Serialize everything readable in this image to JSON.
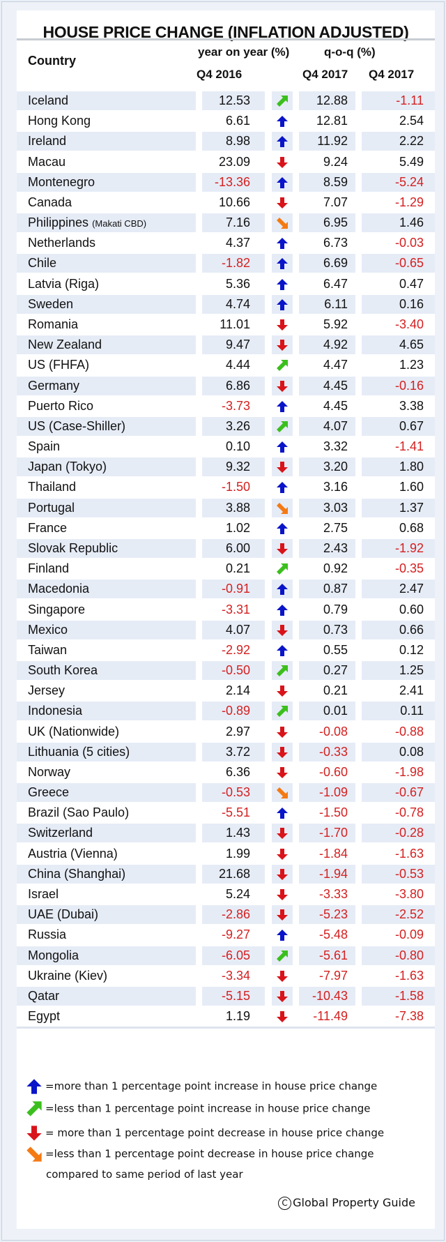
{
  "title": "HOUSE PRICE CHANGE (INFLATION ADJUSTED)",
  "header": {
    "country": "Country",
    "yoy": "year on year (%)",
    "qoq": "q-o-q (%)",
    "col1": "Q4 2016",
    "col2": "Q4 2017",
    "col3": "Q4 2017"
  },
  "colors": {
    "blue": "#0a14c8",
    "green": "#3cbf1e",
    "red": "#d8141a",
    "orange": "#f47a14",
    "negative_text": "#d42020"
  },
  "rows": [
    {
      "country": "Iceland",
      "q4_2016": "12.53",
      "arrow": "green",
      "q4_2017": "12.88",
      "qoq": "-1.11"
    },
    {
      "country": "Hong Kong",
      "q4_2016": "6.61",
      "arrow": "blue",
      "q4_2017": "12.81",
      "qoq": "2.54"
    },
    {
      "country": "Ireland",
      "q4_2016": "8.98",
      "arrow": "blue",
      "q4_2017": "11.92",
      "qoq": "2.22"
    },
    {
      "country": "Macau",
      "q4_2016": "23.09",
      "arrow": "red",
      "q4_2017": "9.24",
      "qoq": "5.49"
    },
    {
      "country": "Montenegro",
      "q4_2016": "-13.36",
      "arrow": "blue",
      "q4_2017": "8.59",
      "qoq": "-5.24"
    },
    {
      "country": "Canada",
      "q4_2016": "10.66",
      "arrow": "red",
      "q4_2017": "7.07",
      "qoq": "-1.29"
    },
    {
      "country": "Philippines",
      "country_note": "(Makati CBD)",
      "q4_2016": "7.16",
      "arrow": "orange",
      "q4_2017": "6.95",
      "qoq": "1.46"
    },
    {
      "country": "Netherlands",
      "q4_2016": "4.37",
      "arrow": "blue",
      "q4_2017": "6.73",
      "qoq": "-0.03"
    },
    {
      "country": "Chile",
      "q4_2016": "-1.82",
      "arrow": "blue",
      "q4_2017": "6.69",
      "qoq": "-0.65"
    },
    {
      "country": "Latvia (Riga)",
      "q4_2016": "5.36",
      "arrow": "blue",
      "q4_2017": "6.47",
      "qoq": "0.47"
    },
    {
      "country": "Sweden",
      "q4_2016": "4.74",
      "arrow": "blue",
      "q4_2017": "6.11",
      "qoq": "0.16"
    },
    {
      "country": "Romania",
      "q4_2016": "11.01",
      "arrow": "red",
      "q4_2017": "5.92",
      "qoq": "-3.40"
    },
    {
      "country": "New Zealand",
      "q4_2016": "9.47",
      "arrow": "red",
      "q4_2017": "4.92",
      "qoq": "4.65"
    },
    {
      "country": "US (FHFA)",
      "q4_2016": "4.44",
      "arrow": "green",
      "q4_2017": "4.47",
      "qoq": "1.23"
    },
    {
      "country": "Germany",
      "q4_2016": "6.86",
      "arrow": "red",
      "q4_2017": "4.45",
      "qoq": "-0.16"
    },
    {
      "country": "Puerto Rico",
      "q4_2016": "-3.73",
      "arrow": "blue",
      "q4_2017": "4.45",
      "qoq": "3.38"
    },
    {
      "country": "US (Case-Shiller)",
      "q4_2016": "3.26",
      "arrow": "green",
      "q4_2017": "4.07",
      "qoq": "0.67"
    },
    {
      "country": "Spain",
      "q4_2016": "0.10",
      "arrow": "blue",
      "q4_2017": "3.32",
      "qoq": "-1.41"
    },
    {
      "country": "Japan (Tokyo)",
      "q4_2016": "9.32",
      "arrow": "red",
      "q4_2017": "3.20",
      "qoq": "1.80"
    },
    {
      "country": "Thailand",
      "q4_2016": "-1.50",
      "arrow": "blue",
      "q4_2017": "3.16",
      "qoq": "1.60"
    },
    {
      "country": "Portugal",
      "q4_2016": "3.88",
      "arrow": "orange",
      "q4_2017": "3.03",
      "qoq": "1.37"
    },
    {
      "country": "France",
      "q4_2016": "1.02",
      "arrow": "blue",
      "q4_2017": "2.75",
      "qoq": "0.68"
    },
    {
      "country": "Slovak Republic",
      "q4_2016": "6.00",
      "arrow": "red",
      "q4_2017": "2.43",
      "qoq": "-1.92"
    },
    {
      "country": "Finland",
      "q4_2016": "0.21",
      "arrow": "green",
      "q4_2017": "0.92",
      "qoq": "-0.35"
    },
    {
      "country": "Macedonia",
      "q4_2016": "-0.91",
      "arrow": "blue",
      "q4_2017": "0.87",
      "qoq": "2.47"
    },
    {
      "country": "Singapore",
      "q4_2016": "-3.31",
      "arrow": "blue",
      "q4_2017": "0.79",
      "qoq": "0.60"
    },
    {
      "country": "Mexico",
      "q4_2016": "4.07",
      "arrow": "red",
      "q4_2017": "0.73",
      "qoq": "0.66"
    },
    {
      "country": "Taiwan",
      "q4_2016": "-2.92",
      "arrow": "blue",
      "q4_2017": "0.55",
      "qoq": "0.12"
    },
    {
      "country": "South Korea",
      "q4_2016": "-0.50",
      "arrow": "green",
      "q4_2017": "0.27",
      "qoq": "1.25"
    },
    {
      "country": "Jersey",
      "q4_2016": "2.14",
      "arrow": "red",
      "q4_2017": "0.21",
      "qoq": "2.41"
    },
    {
      "country": "Indonesia",
      "q4_2016": "-0.89",
      "arrow": "green",
      "q4_2017": "0.01",
      "qoq": "0.11"
    },
    {
      "country": "UK (Nationwide)",
      "q4_2016": "2.97",
      "arrow": "red",
      "q4_2017": "-0.08",
      "qoq": "-0.88"
    },
    {
      "country": "Lithuania (5 cities)",
      "q4_2016": "3.72",
      "arrow": "red",
      "q4_2017": "-0.33",
      "qoq": "0.08"
    },
    {
      "country": "Norway",
      "q4_2016": "6.36",
      "arrow": "red",
      "q4_2017": "-0.60",
      "qoq": "-1.98"
    },
    {
      "country": "Greece",
      "q4_2016": "-0.53",
      "arrow": "orange",
      "q4_2017": "-1.09",
      "qoq": "-0.67"
    },
    {
      "country": "Brazil (Sao Paulo)",
      "q4_2016": "-5.51",
      "arrow": "blue",
      "q4_2017": "-1.50",
      "qoq": "-0.78"
    },
    {
      "country": "Switzerland",
      "q4_2016": "1.43",
      "arrow": "red",
      "q4_2017": "-1.70",
      "qoq": "-0.28"
    },
    {
      "country": "Austria (Vienna)",
      "q4_2016": "1.99",
      "arrow": "red",
      "q4_2017": "-1.84",
      "qoq": "-1.63"
    },
    {
      "country": "China (Shanghai)",
      "q4_2016": "21.68",
      "arrow": "red",
      "q4_2017": "-1.94",
      "qoq": "-0.53"
    },
    {
      "country": "Israel",
      "q4_2016": "5.24",
      "arrow": "red",
      "q4_2017": "-3.33",
      "qoq": "-3.80"
    },
    {
      "country": "UAE (Dubai)",
      "q4_2016": "-2.86",
      "arrow": "red",
      "q4_2017": "-5.23",
      "qoq": "-2.52"
    },
    {
      "country": "Russia",
      "q4_2016": "-9.27",
      "arrow": "blue",
      "q4_2017": "-5.48",
      "qoq": "-0.09"
    },
    {
      "country": "Mongolia",
      "q4_2016": "-6.05",
      "arrow": "green",
      "q4_2017": "-5.61",
      "qoq": "-0.80"
    },
    {
      "country": "Ukraine (Kiev)",
      "q4_2016": "-3.34",
      "arrow": "red",
      "q4_2017": "-7.97",
      "qoq": "-1.63"
    },
    {
      "country": "Qatar",
      "q4_2016": "-5.15",
      "arrow": "red",
      "q4_2017": "-10.43",
      "qoq": "-1.58"
    },
    {
      "country": "Egypt",
      "q4_2016": "1.19",
      "arrow": "red",
      "q4_2017": "-11.49",
      "qoq": "-7.38"
    }
  ],
  "legend": [
    {
      "arrow": "blue",
      "text": "=more than 1 percentage point increase in house price change"
    },
    {
      "arrow": "green",
      "text": "=less than 1 percentage point increase in house price change"
    },
    {
      "arrow": "red",
      "text": "= more than 1 percentage point decrease in house price change"
    },
    {
      "arrow": "orange",
      "text": "=less than 1 percentage point decrease in house price change"
    }
  ],
  "legend_note": "compared to same period of last year",
  "copyright_symbol": "C",
  "copyright": "Global Property Guide"
}
